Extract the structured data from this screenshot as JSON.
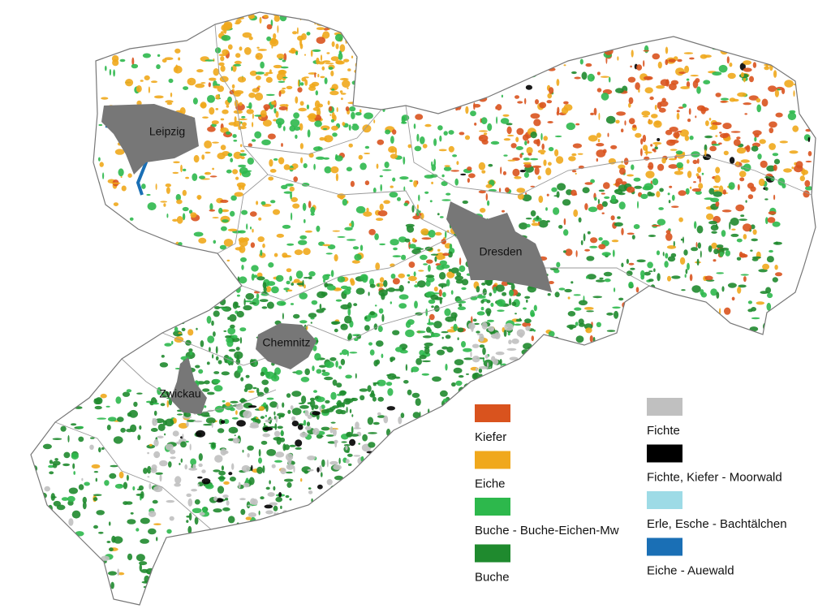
{
  "map": {
    "cities": [
      "Leipzig",
      "Dresden",
      "Chemnitz",
      "Zwickau"
    ],
    "legend": [
      {
        "label": "Kiefer",
        "color": "#d9531e"
      },
      {
        "label": "Eiche",
        "color": "#f0a81c"
      },
      {
        "label": "Buche - Buche-Eichen-Mw",
        "color": "#2db84c"
      },
      {
        "label": "Buche",
        "color": "#1f8a2e"
      },
      {
        "label": "Fichte",
        "color": "#c0c0c0"
      },
      {
        "label": "Fichte, Kiefer - Moorwald",
        "color": "#000000"
      },
      {
        "label": "Erle, Esche - Bachtälchen",
        "color": "#9edbe6"
      },
      {
        "label": "Eiche - Auewald",
        "color": "#1a6fb5"
      }
    ]
  }
}
